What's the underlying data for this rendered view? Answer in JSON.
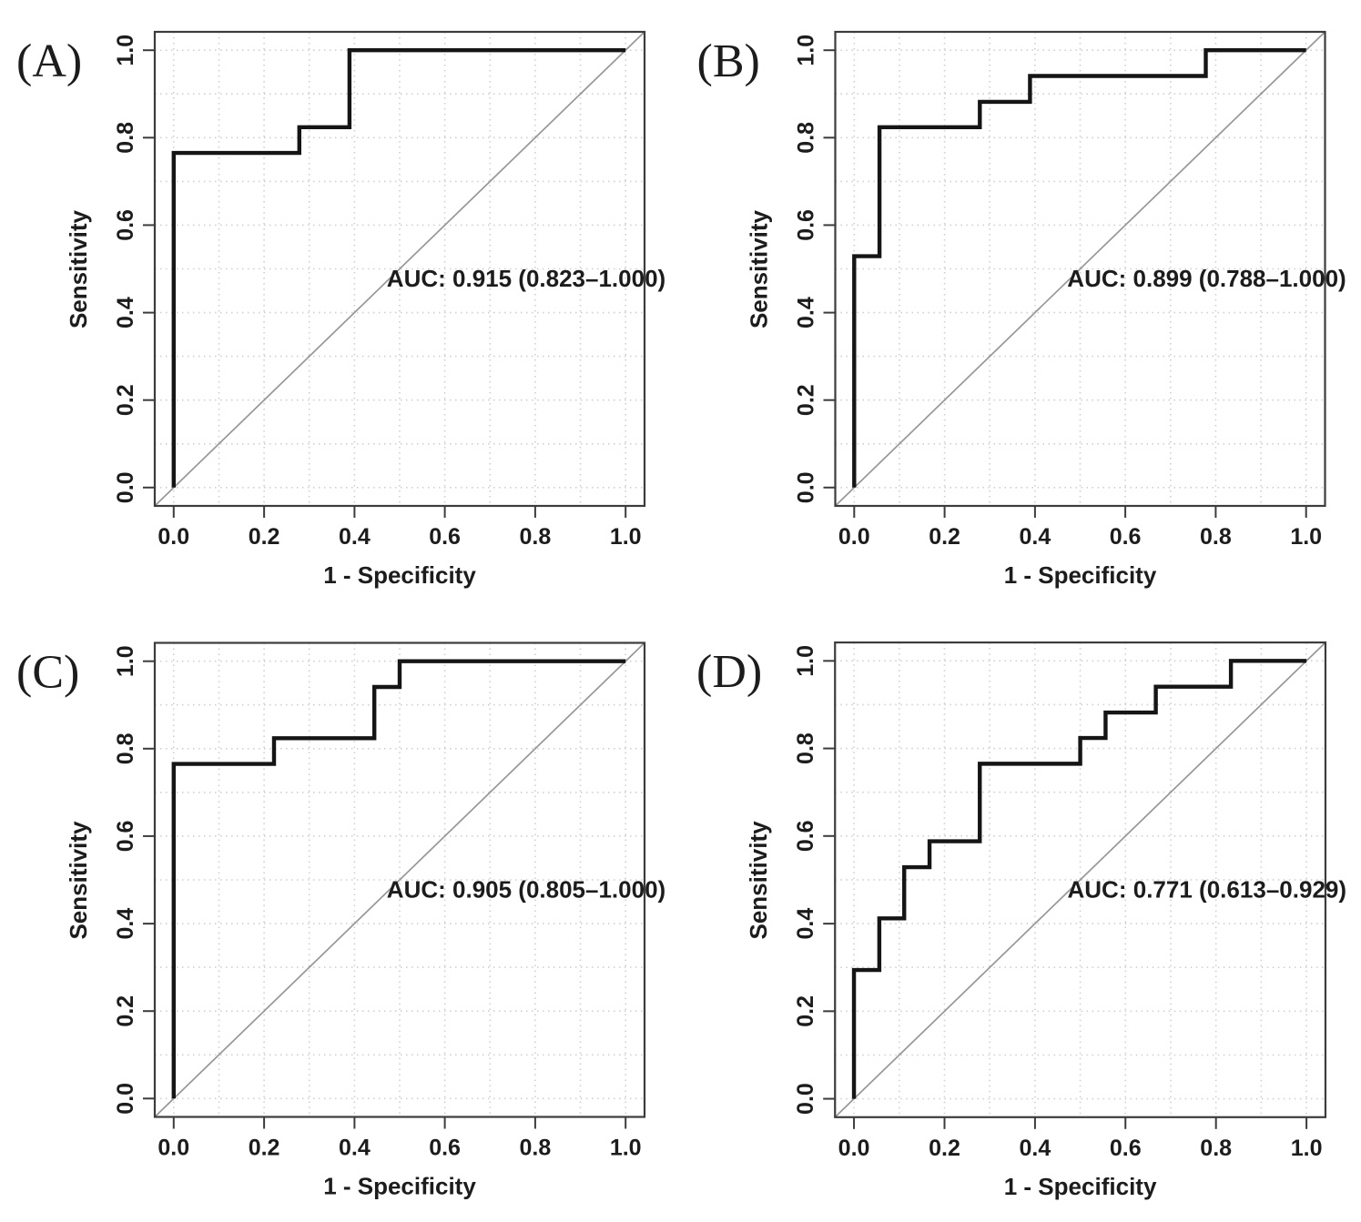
{
  "figure": {
    "description": "Four-panel ROC curve figure",
    "background": "#ffffff",
    "text_color": "#1c1c1c",
    "grid_color": "#cfcfcf",
    "diagonal_color": "#979797",
    "curve_color": "#151515",
    "box_color": "#3c3c3c"
  },
  "chart_data": [
    {
      "panel_label": "(A)",
      "type": "line",
      "xlabel": "1 - Specificity",
      "ylabel": "Sensitivity",
      "xlim": [
        -0.04,
        1.04
      ],
      "ylim": [
        -0.04,
        1.04
      ],
      "x_tick_labels": [
        "0.0",
        "0.2",
        "0.4",
        "0.6",
        "0.8",
        "1.0"
      ],
      "y_tick_labels": [
        "0.0",
        "0.2",
        "0.4",
        "0.6",
        "0.8",
        "1.0"
      ],
      "grid": {
        "show": true,
        "step": 0.1,
        "style": "dotted"
      },
      "reference_diagonal": true,
      "auc": {
        "label": "AUC: 0.915 (0.823–1.000)",
        "value": 0.915,
        "ci_low": 0.823,
        "ci_high": 1.0,
        "text_pos": {
          "x": 0.78,
          "y": 0.48
        }
      },
      "roc_points": [
        [
          0,
          0
        ],
        [
          0,
          0.765
        ],
        [
          0.278,
          0.765
        ],
        [
          0.278,
          0.824
        ],
        [
          0.389,
          0.824
        ],
        [
          0.389,
          1
        ],
        [
          1,
          1
        ]
      ]
    },
    {
      "panel_label": "(B)",
      "type": "line",
      "xlabel": "1 - Specificity",
      "ylabel": "Sensitivity",
      "xlim": [
        -0.04,
        1.04
      ],
      "ylim": [
        -0.04,
        1.04
      ],
      "x_tick_labels": [
        "0.0",
        "0.2",
        "0.4",
        "0.6",
        "0.8",
        "1.0"
      ],
      "y_tick_labels": [
        "0.0",
        "0.2",
        "0.4",
        "0.6",
        "0.8",
        "1.0"
      ],
      "grid": {
        "show": true,
        "step": 0.1,
        "style": "dotted"
      },
      "reference_diagonal": true,
      "auc": {
        "label": "AUC: 0.899 (0.788–1.000)",
        "value": 0.899,
        "ci_low": 0.788,
        "ci_high": 1.0,
        "text_pos": {
          "x": 0.78,
          "y": 0.48
        }
      },
      "roc_points": [
        [
          0,
          0
        ],
        [
          0,
          0.529
        ],
        [
          0.056,
          0.529
        ],
        [
          0.056,
          0.824
        ],
        [
          0.278,
          0.824
        ],
        [
          0.278,
          0.882
        ],
        [
          0.389,
          0.882
        ],
        [
          0.389,
          0.941
        ],
        [
          0.778,
          0.941
        ],
        [
          0.778,
          1
        ],
        [
          1,
          1
        ]
      ]
    },
    {
      "panel_label": "(C)",
      "type": "line",
      "xlabel": "1 - Specificity",
      "ylabel": "Sensitivity",
      "xlim": [
        -0.04,
        1.04
      ],
      "ylim": [
        -0.04,
        1.04
      ],
      "x_tick_labels": [
        "0.0",
        "0.2",
        "0.4",
        "0.6",
        "0.8",
        "1.0"
      ],
      "y_tick_labels": [
        "0.0",
        "0.2",
        "0.4",
        "0.6",
        "0.8",
        "1.0"
      ],
      "grid": {
        "show": true,
        "step": 0.1,
        "style": "dotted"
      },
      "reference_diagonal": true,
      "auc": {
        "label": "AUC: 0.905 (0.805–1.000)",
        "value": 0.905,
        "ci_low": 0.805,
        "ci_high": 1.0,
        "text_pos": {
          "x": 0.78,
          "y": 0.48
        }
      },
      "roc_points": [
        [
          0,
          0
        ],
        [
          0,
          0.765
        ],
        [
          0.222,
          0.765
        ],
        [
          0.222,
          0.824
        ],
        [
          0.444,
          0.824
        ],
        [
          0.444,
          0.941
        ],
        [
          0.5,
          0.941
        ],
        [
          0.5,
          1
        ],
        [
          1,
          1
        ]
      ]
    },
    {
      "panel_label": "(D)",
      "type": "line",
      "xlabel": "1 - Specificity",
      "ylabel": "Sensitivity",
      "xlim": [
        -0.04,
        1.04
      ],
      "ylim": [
        -0.04,
        1.04
      ],
      "x_tick_labels": [
        "0.0",
        "0.2",
        "0.4",
        "0.6",
        "0.8",
        "1.0"
      ],
      "y_tick_labels": [
        "0.0",
        "0.2",
        "0.4",
        "0.6",
        "0.8",
        "1.0"
      ],
      "grid": {
        "show": true,
        "step": 0.1,
        "style": "dotted"
      },
      "reference_diagonal": true,
      "auc": {
        "label": "AUC: 0.771 (0.613–0.929)",
        "value": 0.771,
        "ci_low": 0.613,
        "ci_high": 0.929,
        "text_pos": {
          "x": 0.78,
          "y": 0.48
        }
      },
      "roc_points": [
        [
          0,
          0
        ],
        [
          0,
          0.294
        ],
        [
          0.056,
          0.294
        ],
        [
          0.056,
          0.412
        ],
        [
          0.111,
          0.412
        ],
        [
          0.111,
          0.529
        ],
        [
          0.167,
          0.529
        ],
        [
          0.167,
          0.588
        ],
        [
          0.278,
          0.588
        ],
        [
          0.278,
          0.765
        ],
        [
          0.5,
          0.765
        ],
        [
          0.5,
          0.824
        ],
        [
          0.556,
          0.824
        ],
        [
          0.556,
          0.882
        ],
        [
          0.667,
          0.882
        ],
        [
          0.667,
          0.941
        ],
        [
          0.833,
          0.941
        ],
        [
          0.833,
          1
        ],
        [
          1,
          1
        ]
      ]
    }
  ]
}
